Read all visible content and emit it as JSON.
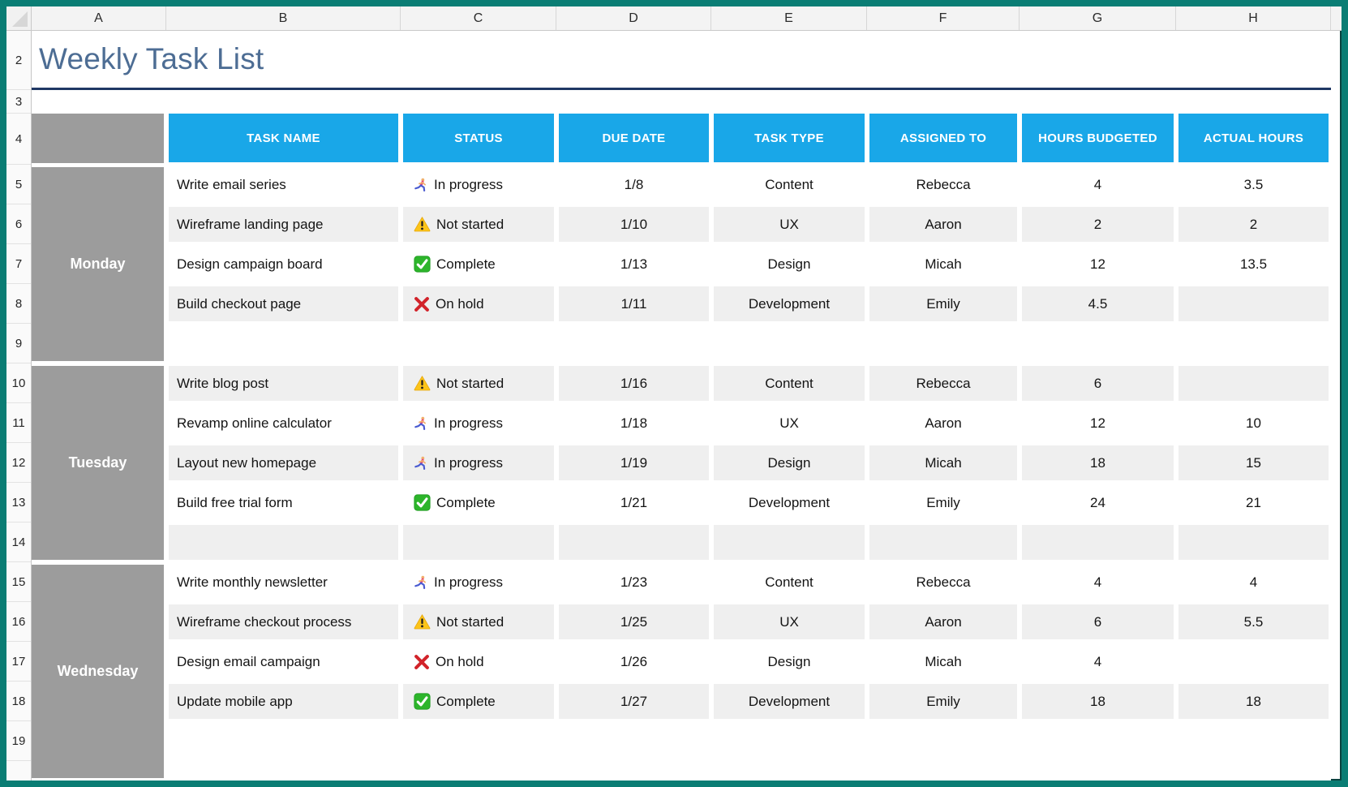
{
  "sheet": {
    "column_letters": [
      "A",
      "B",
      "C",
      "D",
      "E",
      "F",
      "G",
      "H"
    ],
    "row_numbers": [
      "2",
      "3",
      "4",
      "5",
      "6",
      "7",
      "8",
      "9",
      "10",
      "11",
      "12",
      "13",
      "14",
      "15",
      "16",
      "17",
      "18",
      "19"
    ],
    "title": {
      "text": "Weekly Task List"
    }
  },
  "colors": {
    "frame": "#0a7d74",
    "header_bg": "#19a7e8",
    "header_text": "#ffffff",
    "day_bg": "#9c9c9c",
    "stripe": "#efefef",
    "title_text": "#4d6d94",
    "title_underline": "#1f3864"
  },
  "table": {
    "headers": [
      "TASK NAME",
      "STATUS",
      "DUE DATE",
      "TASK TYPE",
      "ASSIGNED TO",
      "HOURS BUDGETED",
      "ACTUAL HOURS"
    ],
    "statuses": {
      "in_progress": {
        "label": "In progress",
        "icon": "runner-icon"
      },
      "not_started": {
        "label": "Not started",
        "icon": "warning-icon"
      },
      "complete": {
        "label": "Complete",
        "icon": "check-icon"
      },
      "on_hold": {
        "label": "On hold",
        "icon": "x-icon"
      }
    },
    "groups": [
      {
        "day": "Monday",
        "rows": [
          {
            "task": "Write email series",
            "status": "in_progress",
            "due": "1/8",
            "type": "Content",
            "assigned": "Rebecca",
            "budgeted": "4",
            "actual": "3.5"
          },
          {
            "task": "Wireframe landing page",
            "status": "not_started",
            "due": "1/10",
            "type": "UX",
            "assigned": "Aaron",
            "budgeted": "2",
            "actual": "2"
          },
          {
            "task": "Design campaign board",
            "status": "complete",
            "due": "1/13",
            "type": "Design",
            "assigned": "Micah",
            "budgeted": "12",
            "actual": "13.5"
          },
          {
            "task": "Build checkout page",
            "status": "on_hold",
            "due": "1/11",
            "type": "Development",
            "assigned": "Emily",
            "budgeted": "4.5",
            "actual": ""
          },
          {
            "task": "",
            "status": null,
            "due": "",
            "type": "",
            "assigned": "",
            "budgeted": "",
            "actual": ""
          }
        ]
      },
      {
        "day": "Tuesday",
        "rows": [
          {
            "task": "Write blog post",
            "status": "not_started",
            "due": "1/16",
            "type": "Content",
            "assigned": "Rebecca",
            "budgeted": "6",
            "actual": ""
          },
          {
            "task": "Revamp online calculator",
            "status": "in_progress",
            "due": "1/18",
            "type": "UX",
            "assigned": "Aaron",
            "budgeted": "12",
            "actual": "10"
          },
          {
            "task": "Layout new homepage",
            "status": "in_progress",
            "due": "1/19",
            "type": "Design",
            "assigned": "Micah",
            "budgeted": "18",
            "actual": "15"
          },
          {
            "task": "Build free trial form",
            "status": "complete",
            "due": "1/21",
            "type": "Development",
            "assigned": "Emily",
            "budgeted": "24",
            "actual": "21"
          },
          {
            "task": "",
            "status": null,
            "due": "",
            "type": "",
            "assigned": "",
            "budgeted": "",
            "actual": ""
          }
        ]
      },
      {
        "day": "Wednesday",
        "rows": [
          {
            "task": "Write monthly newsletter",
            "status": "in_progress",
            "due": "1/23",
            "type": "Content",
            "assigned": "Rebecca",
            "budgeted": "4",
            "actual": "4"
          },
          {
            "task": "Wireframe checkout process",
            "status": "not_started",
            "due": "1/25",
            "type": "UX",
            "assigned": "Aaron",
            "budgeted": "6",
            "actual": "5.5"
          },
          {
            "task": "Design email campaign",
            "status": "on_hold",
            "due": "1/26",
            "type": "Design",
            "assigned": "Micah",
            "budgeted": "4",
            "actual": ""
          },
          {
            "task": "Update mobile app",
            "status": "complete",
            "due": "1/27",
            "type": "Development",
            "assigned": "Emily",
            "budgeted": "18",
            "actual": "18"
          },
          {
            "task": "",
            "status": null,
            "due": "",
            "type": "",
            "assigned": "",
            "budgeted": "",
            "actual": ""
          }
        ]
      }
    ]
  }
}
